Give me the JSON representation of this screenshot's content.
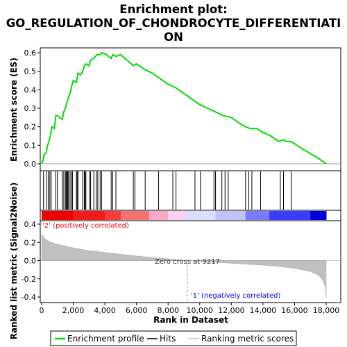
{
  "chart_data": {
    "type": "line",
    "title_line1": "Enrichment plot:",
    "title_line2": "GO_REGULATION_OF_CHONDROCYTE_DIFFERENTIATI",
    "title_line3": "ON",
    "top_panel": {
      "ylabel": "Enrichment score (ES)",
      "ylim": [
        -0.02,
        0.62
      ],
      "yticks": [
        "0.0",
        "0.1",
        "0.2",
        "0.3",
        "0.4",
        "0.5",
        "0.6"
      ],
      "ytick_values": [
        0.0,
        0.1,
        0.2,
        0.3,
        0.4,
        0.5,
        0.6
      ],
      "series_name": "Enrichment profile",
      "color": "#00dd00",
      "es_points": [
        [
          0,
          0.0
        ],
        [
          100,
          0.02
        ],
        [
          150,
          0.05
        ],
        [
          300,
          0.06
        ],
        [
          350,
          0.09
        ],
        [
          450,
          0.12
        ],
        [
          550,
          0.15
        ],
        [
          650,
          0.2
        ],
        [
          800,
          0.19
        ],
        [
          900,
          0.26
        ],
        [
          1000,
          0.26
        ],
        [
          1300,
          0.24
        ],
        [
          1400,
          0.28
        ],
        [
          1500,
          0.3
        ],
        [
          1600,
          0.33
        ],
        [
          1700,
          0.36
        ],
        [
          1800,
          0.38
        ],
        [
          1900,
          0.42
        ],
        [
          2000,
          0.45
        ],
        [
          2200,
          0.44
        ],
        [
          2300,
          0.49
        ],
        [
          2450,
          0.48
        ],
        [
          2600,
          0.5
        ],
        [
          2700,
          0.53
        ],
        [
          2800,
          0.54
        ],
        [
          3000,
          0.53
        ],
        [
          3100,
          0.56
        ],
        [
          3300,
          0.57
        ],
        [
          3500,
          0.59
        ],
        [
          3700,
          0.59
        ],
        [
          3800,
          0.6
        ],
        [
          4100,
          0.59
        ],
        [
          4400,
          0.57
        ],
        [
          4500,
          0.59
        ],
        [
          4700,
          0.58
        ],
        [
          5000,
          0.59
        ],
        [
          5800,
          0.53
        ],
        [
          6000,
          0.54
        ],
        [
          6500,
          0.51
        ],
        [
          7000,
          0.49
        ],
        [
          7500,
          0.46
        ],
        [
          8000,
          0.43
        ],
        [
          8500,
          0.41
        ],
        [
          9000,
          0.38
        ],
        [
          9500,
          0.35
        ],
        [
          10000,
          0.32
        ],
        [
          10500,
          0.3
        ],
        [
          11000,
          0.28
        ],
        [
          11500,
          0.26
        ],
        [
          12000,
          0.25
        ],
        [
          12500,
          0.22
        ],
        [
          12900,
          0.2
        ],
        [
          13200,
          0.19
        ],
        [
          13600,
          0.19
        ],
        [
          14000,
          0.17
        ],
        [
          14500,
          0.15
        ],
        [
          15000,
          0.12
        ],
        [
          15300,
          0.13
        ],
        [
          15500,
          0.12
        ],
        [
          15800,
          0.12
        ],
        [
          16500,
          0.08
        ],
        [
          17500,
          0.03
        ],
        [
          18000,
          0.0
        ]
      ]
    },
    "hits": {
      "series_name": "Hits",
      "positions": [
        120,
        320,
        420,
        520,
        600,
        900,
        1000,
        1300,
        1400,
        1500,
        1550,
        1600,
        1650,
        1700,
        1800,
        1900,
        1950,
        2200,
        2250,
        2300,
        2600,
        2700,
        2750,
        2800,
        3050,
        3100,
        3300,
        3450,
        3550,
        3700,
        3800,
        4400,
        4500,
        4700,
        5800,
        5900,
        6550,
        7400,
        8300,
        8500,
        9700,
        10050,
        10900,
        11000,
        11400,
        11600,
        11800,
        12900,
        13100,
        13300,
        13850,
        15100,
        15300,
        15800
      ]
    },
    "bottom_panel": {
      "ylabel": "Ranked list metric (Signal2Noise)",
      "xlabel": "Rank in Dataset",
      "ylim": [
        -0.45,
        0.45
      ],
      "yticks": [
        "0.4",
        "0.2",
        "0.0",
        "-0.2",
        "-0.4"
      ],
      "ytick_values": [
        0.4,
        0.2,
        0.0,
        -0.2,
        -0.4
      ],
      "xticks": [
        "0",
        "2,000",
        "4,000",
        "6,000",
        "8,000",
        "10,000",
        "12,000",
        "14,000",
        "16,000",
        "18,000"
      ],
      "xtick_values": [
        0,
        2000,
        4000,
        6000,
        8000,
        10000,
        12000,
        14000,
        16000,
        18000
      ],
      "xlim": [
        0,
        18000
      ],
      "series_name": "Ranking metric scores",
      "metric_points": [
        [
          0,
          0.29
        ],
        [
          100,
          0.26
        ],
        [
          300,
          0.23
        ],
        [
          600,
          0.2
        ],
        [
          1000,
          0.18
        ],
        [
          1500,
          0.16
        ],
        [
          2000,
          0.14
        ],
        [
          3000,
          0.11
        ],
        [
          4000,
          0.09
        ],
        [
          5000,
          0.07
        ],
        [
          6000,
          0.05
        ],
        [
          7000,
          0.035
        ],
        [
          8000,
          0.02
        ],
        [
          9217,
          0.0
        ],
        [
          10000,
          -0.01
        ],
        [
          11000,
          -0.02
        ],
        [
          12000,
          -0.03
        ],
        [
          13000,
          -0.04
        ],
        [
          14000,
          -0.05
        ],
        [
          15000,
          -0.065
        ],
        [
          16000,
          -0.085
        ],
        [
          17000,
          -0.12
        ],
        [
          17500,
          -0.16
        ],
        [
          17800,
          -0.22
        ],
        [
          17950,
          -0.3
        ],
        [
          18000,
          -0.42
        ]
      ],
      "zero_cross_label": "Zero cross at 9217",
      "zero_cross": 9217,
      "pos_label": "'2' (positively correlated)",
      "neg_label": "'1' (negatively correlated)",
      "pos_color": "#ff0000",
      "neg_color": "#0000ff"
    },
    "legend": [
      {
        "label": "Enrichment profile",
        "color": "#00dd00"
      },
      {
        "label": "Hits",
        "color": "#000000"
      },
      {
        "label": "Ranking metric scores",
        "color": "#c0c0c0"
      }
    ]
  }
}
